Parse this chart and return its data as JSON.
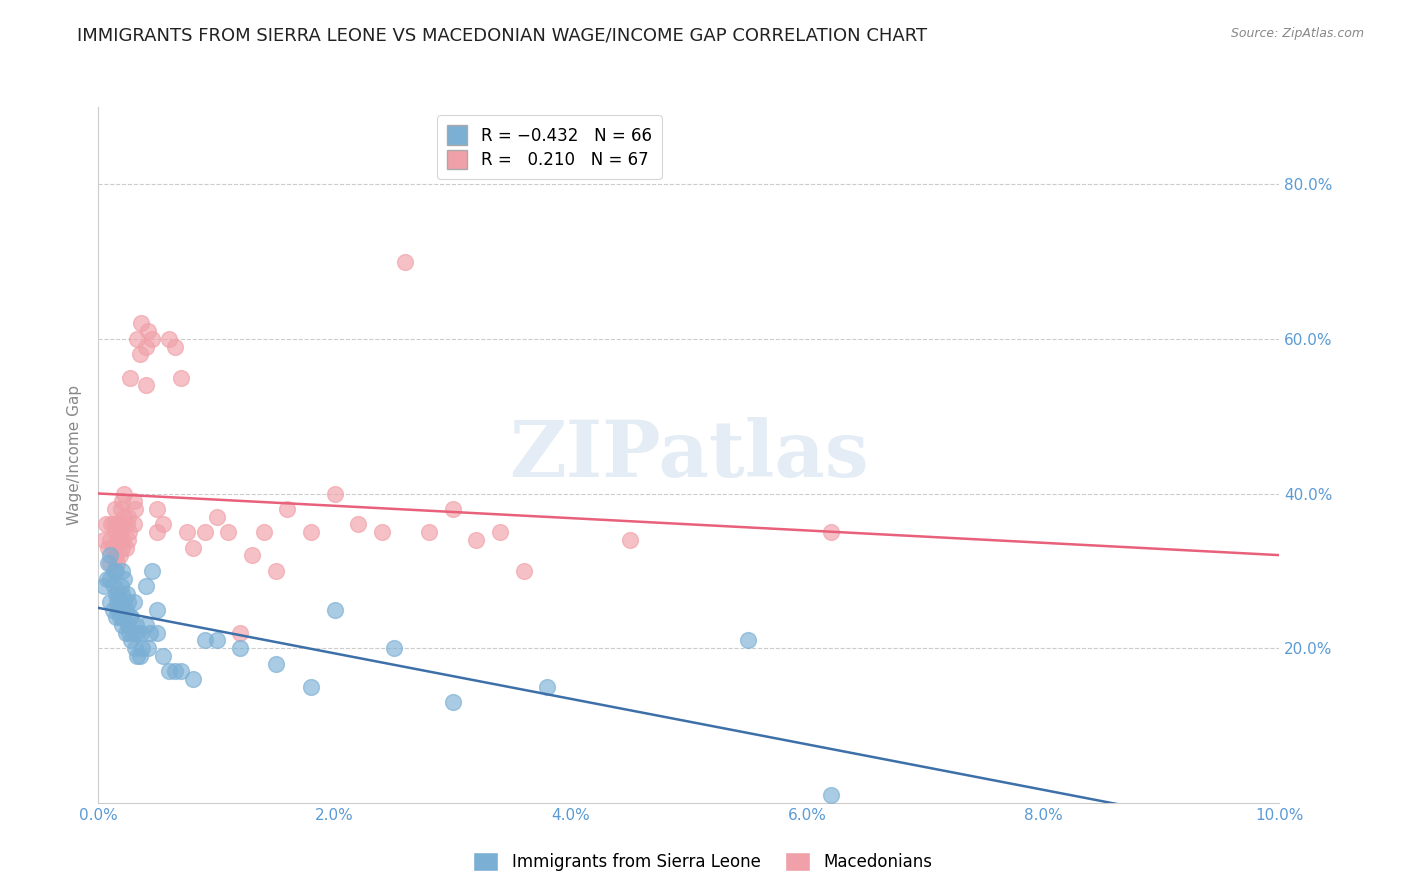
{
  "title": "IMMIGRANTS FROM SIERRA LEONE VS MACEDONIAN WAGE/INCOME GAP CORRELATION CHART",
  "source": "Source: ZipAtlas.com",
  "ylabel": "Wage/Income Gap",
  "xlim": [
    0.0,
    0.1
  ],
  "ylim": [
    0.0,
    0.9
  ],
  "xticks": [
    0.0,
    0.02,
    0.04,
    0.06,
    0.08,
    0.1
  ],
  "xtick_labels": [
    "0.0%",
    "2.0%",
    "4.0%",
    "6.0%",
    "8.0%",
    "10.0%"
  ],
  "ytick_positions": [
    0.2,
    0.4,
    0.6,
    0.8
  ],
  "ytick_labels_right": [
    "20.0%",
    "40.0%",
    "60.0%",
    "80.0%"
  ],
  "blue_color": "#7bafd4",
  "pink_color": "#f0a0a8",
  "blue_line_color": "#3d6fa8",
  "pink_line_color": "#e8607a",
  "right_axis_color": "#5b9bd5",
  "legend_blue_label": "R = −0.432   N = 66",
  "legend_pink_label": "R =   0.210   N = 67",
  "legend_series1": "Immigrants from Sierra Leone",
  "legend_series2": "Macedonians",
  "title_fontsize": 13,
  "axis_label_fontsize": 11,
  "tick_fontsize": 11,
  "watermark": "ZIPatlas",
  "background_color": "#ffffff",
  "blue_scatter": {
    "x": [
      0.0005,
      0.0007,
      0.0008,
      0.001,
      0.001,
      0.001,
      0.0012,
      0.0013,
      0.0013,
      0.0015,
      0.0015,
      0.0015,
      0.0016,
      0.0017,
      0.0017,
      0.0018,
      0.0018,
      0.0019,
      0.002,
      0.002,
      0.002,
      0.002,
      0.0021,
      0.0022,
      0.0022,
      0.0023,
      0.0023,
      0.0024,
      0.0025,
      0.0025,
      0.0026,
      0.0027,
      0.0028,
      0.0028,
      0.003,
      0.003,
      0.0031,
      0.0032,
      0.0033,
      0.0033,
      0.0035,
      0.0036,
      0.0037,
      0.004,
      0.004,
      0.0042,
      0.0044,
      0.0045,
      0.005,
      0.005,
      0.0055,
      0.006,
      0.0065,
      0.007,
      0.008,
      0.009,
      0.01,
      0.012,
      0.015,
      0.018,
      0.02,
      0.025,
      0.03,
      0.038,
      0.055,
      0.062
    ],
    "y": [
      0.28,
      0.29,
      0.31,
      0.26,
      0.29,
      0.32,
      0.25,
      0.28,
      0.3,
      0.24,
      0.27,
      0.3,
      0.26,
      0.25,
      0.27,
      0.24,
      0.26,
      0.28,
      0.23,
      0.25,
      0.27,
      0.3,
      0.24,
      0.26,
      0.29,
      0.22,
      0.25,
      0.27,
      0.23,
      0.26,
      0.22,
      0.24,
      0.21,
      0.24,
      0.22,
      0.26,
      0.2,
      0.23,
      0.19,
      0.22,
      0.19,
      0.22,
      0.2,
      0.23,
      0.28,
      0.2,
      0.22,
      0.3,
      0.22,
      0.25,
      0.19,
      0.17,
      0.17,
      0.17,
      0.16,
      0.21,
      0.21,
      0.2,
      0.18,
      0.15,
      0.25,
      0.2,
      0.13,
      0.15,
      0.21,
      0.01
    ]
  },
  "pink_scatter": {
    "x": [
      0.0005,
      0.0006,
      0.0008,
      0.001,
      0.001,
      0.0011,
      0.0012,
      0.0013,
      0.0014,
      0.0015,
      0.0015,
      0.0016,
      0.0016,
      0.0017,
      0.0018,
      0.0018,
      0.0019,
      0.002,
      0.002,
      0.002,
      0.0021,
      0.0022,
      0.0022,
      0.0023,
      0.0024,
      0.0025,
      0.0025,
      0.0026,
      0.0027,
      0.003,
      0.003,
      0.0031,
      0.0033,
      0.0035,
      0.0036,
      0.004,
      0.004,
      0.0042,
      0.0045,
      0.005,
      0.005,
      0.0055,
      0.006,
      0.0065,
      0.007,
      0.0075,
      0.008,
      0.009,
      0.01,
      0.011,
      0.012,
      0.013,
      0.014,
      0.015,
      0.016,
      0.018,
      0.02,
      0.022,
      0.024,
      0.026,
      0.028,
      0.03,
      0.032,
      0.034,
      0.036,
      0.045,
      0.062
    ],
    "y": [
      0.34,
      0.36,
      0.33,
      0.31,
      0.34,
      0.36,
      0.33,
      0.36,
      0.38,
      0.32,
      0.35,
      0.31,
      0.34,
      0.36,
      0.32,
      0.35,
      0.38,
      0.33,
      0.36,
      0.39,
      0.34,
      0.37,
      0.4,
      0.33,
      0.36,
      0.34,
      0.37,
      0.35,
      0.55,
      0.36,
      0.39,
      0.38,
      0.6,
      0.58,
      0.62,
      0.59,
      0.54,
      0.61,
      0.6,
      0.35,
      0.38,
      0.36,
      0.6,
      0.59,
      0.55,
      0.35,
      0.33,
      0.35,
      0.37,
      0.35,
      0.22,
      0.32,
      0.35,
      0.3,
      0.38,
      0.35,
      0.4,
      0.36,
      0.35,
      0.7,
      0.35,
      0.38,
      0.34,
      0.35,
      0.3,
      0.34,
      0.35
    ]
  }
}
